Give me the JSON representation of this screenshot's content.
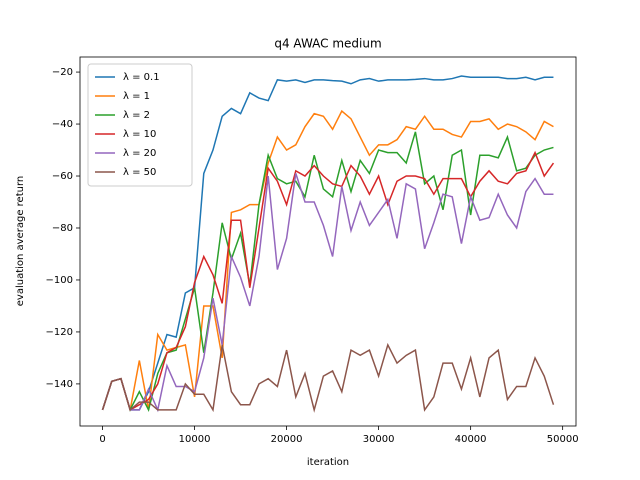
{
  "chart_data": {
    "type": "line",
    "title": "q4 AWAC medium",
    "x_label": "iteration",
    "y_label": "evaluation average return",
    "x": [
      0,
      1000,
      2000,
      3000,
      4000,
      5000,
      6000,
      7000,
      8000,
      9000,
      10000,
      11000,
      12000,
      13000,
      14000,
      15000,
      16000,
      17000,
      18000,
      19000,
      20000,
      21000,
      22000,
      23000,
      24000,
      25000,
      26000,
      27000,
      28000,
      29000,
      30000,
      31000,
      32000,
      33000,
      34000,
      35000,
      36000,
      37000,
      38000,
      39000,
      40000,
      41000,
      42000,
      43000,
      44000,
      45000,
      46000,
      47000,
      48000,
      49000
    ],
    "series": [
      {
        "name": "λ = 0.1",
        "color": "#1f77b4",
        "values": [
          -150,
          -139,
          -138,
          -150,
          -150,
          -143,
          -132,
          -121,
          -122,
          -105,
          -103,
          -59,
          -50,
          -37,
          -34,
          -36,
          -28,
          -30,
          -31,
          -23,
          -23.5,
          -23,
          -24,
          -23,
          -23,
          -23.3,
          -23.5,
          -24.5,
          -23,
          -22.5,
          -23.5,
          -23,
          -23,
          -23,
          -22.8,
          -22.5,
          -23,
          -23,
          -22.5,
          -21.5,
          -22,
          -22,
          -22,
          -22,
          -22.5,
          -22.5,
          -22,
          -23,
          -22,
          -22
        ]
      },
      {
        "name": "λ = 1",
        "color": "#ff7f0e",
        "values": [
          -150,
          -139,
          -138,
          -150,
          -131,
          -150,
          -121,
          -127,
          -126,
          -125,
          -145,
          -110,
          -110,
          -130,
          -74,
          -73,
          -71,
          -71,
          -55,
          -45,
          -50,
          -48,
          -41,
          -36,
          -37,
          -42,
          -35,
          -38,
          -45,
          -52,
          -48,
          -48,
          -46,
          -41,
          -42,
          -37,
          -42,
          -42,
          -44,
          -45,
          -39,
          -39,
          -38,
          -42,
          -40,
          -41,
          -43,
          -46,
          -39,
          -41
        ]
      },
      {
        "name": "λ = 2",
        "color": "#2ca02c",
        "values": [
          -150,
          -139,
          -138,
          -150,
          -143,
          -150,
          -136,
          -128,
          -127,
          -115,
          -103,
          -128,
          -105,
          -78,
          -92,
          -82,
          -102,
          -71,
          -52,
          -61,
          -63,
          -62,
          -68,
          -52,
          -65,
          -68,
          -54,
          -66,
          -54,
          -59,
          -50,
          -51,
          -51,
          -55,
          -43,
          -63,
          -60,
          -73,
          -52,
          -50,
          -75,
          -52,
          -52,
          -53,
          -45,
          -58,
          -57,
          -52,
          -50,
          -49
        ]
      },
      {
        "name": "λ = 10",
        "color": "#d62728",
        "values": [
          -150,
          -139,
          -138,
          -150,
          -148,
          -146,
          -140,
          -128,
          -126,
          -118,
          -101,
          -91,
          -98,
          -109,
          -77,
          -77,
          -103,
          -80,
          -57,
          -62,
          -71,
          -58,
          -60,
          -56,
          -60,
          -63,
          -64,
          -56,
          -60,
          -67,
          -60,
          -71,
          -62,
          -60,
          -60,
          -61,
          -67,
          -61,
          -61,
          -61,
          -68,
          -62,
          -58,
          -62,
          -63,
          -59,
          -58,
          -51,
          -60,
          -55
        ]
      },
      {
        "name": "λ = 20",
        "color": "#9467bd",
        "values": [
          -150,
          -139,
          -138,
          -150,
          -150,
          -142,
          -150,
          -133,
          -141,
          -141,
          -143,
          -130,
          -107,
          -125,
          -91,
          -99,
          -110,
          -91,
          -60,
          -96,
          -84,
          -59,
          -70,
          -70,
          -79,
          -91,
          -64,
          -81,
          -70,
          -79,
          -74,
          -69,
          -84,
          -63,
          -65,
          -88,
          -78,
          -67,
          -68,
          -86,
          -68,
          -77,
          -76,
          -67,
          -75,
          -80,
          -66,
          -61,
          -67,
          -67
        ]
      },
      {
        "name": "λ = 50",
        "color": "#8c564b",
        "values": [
          -150,
          -139,
          -138,
          -150,
          -147,
          -147,
          -150,
          -150,
          -150,
          -140,
          -144,
          -144,
          -150,
          -125,
          -143,
          -148,
          -148,
          -140,
          -138,
          -141,
          -127,
          -145,
          -136,
          -150,
          -137,
          -135,
          -143,
          -127,
          -129,
          -127,
          -137,
          -125,
          -132,
          -129,
          -127,
          -150,
          -145,
          -132,
          -132,
          -142,
          -130,
          -145,
          -130,
          -127,
          -146,
          -141,
          -141,
          -130,
          -137,
          -148
        ]
      }
    ],
    "xlim": [
      -2450,
      51450
    ],
    "ylim": [
      -156.2,
      -14.2
    ],
    "xticks": [
      0,
      10000,
      20000,
      30000,
      40000,
      50000
    ],
    "yticks": [
      {
        "value": -140,
        "label": "−140"
      },
      {
        "value": -120,
        "label": "−120"
      },
      {
        "value": -100,
        "label": "−100"
      },
      {
        "value": -80,
        "label": "−80"
      },
      {
        "value": -60,
        "label": "−60"
      },
      {
        "value": -40,
        "label": "−40"
      },
      {
        "value": -20,
        "label": "−20"
      }
    ],
    "legend": "upper left"
  }
}
